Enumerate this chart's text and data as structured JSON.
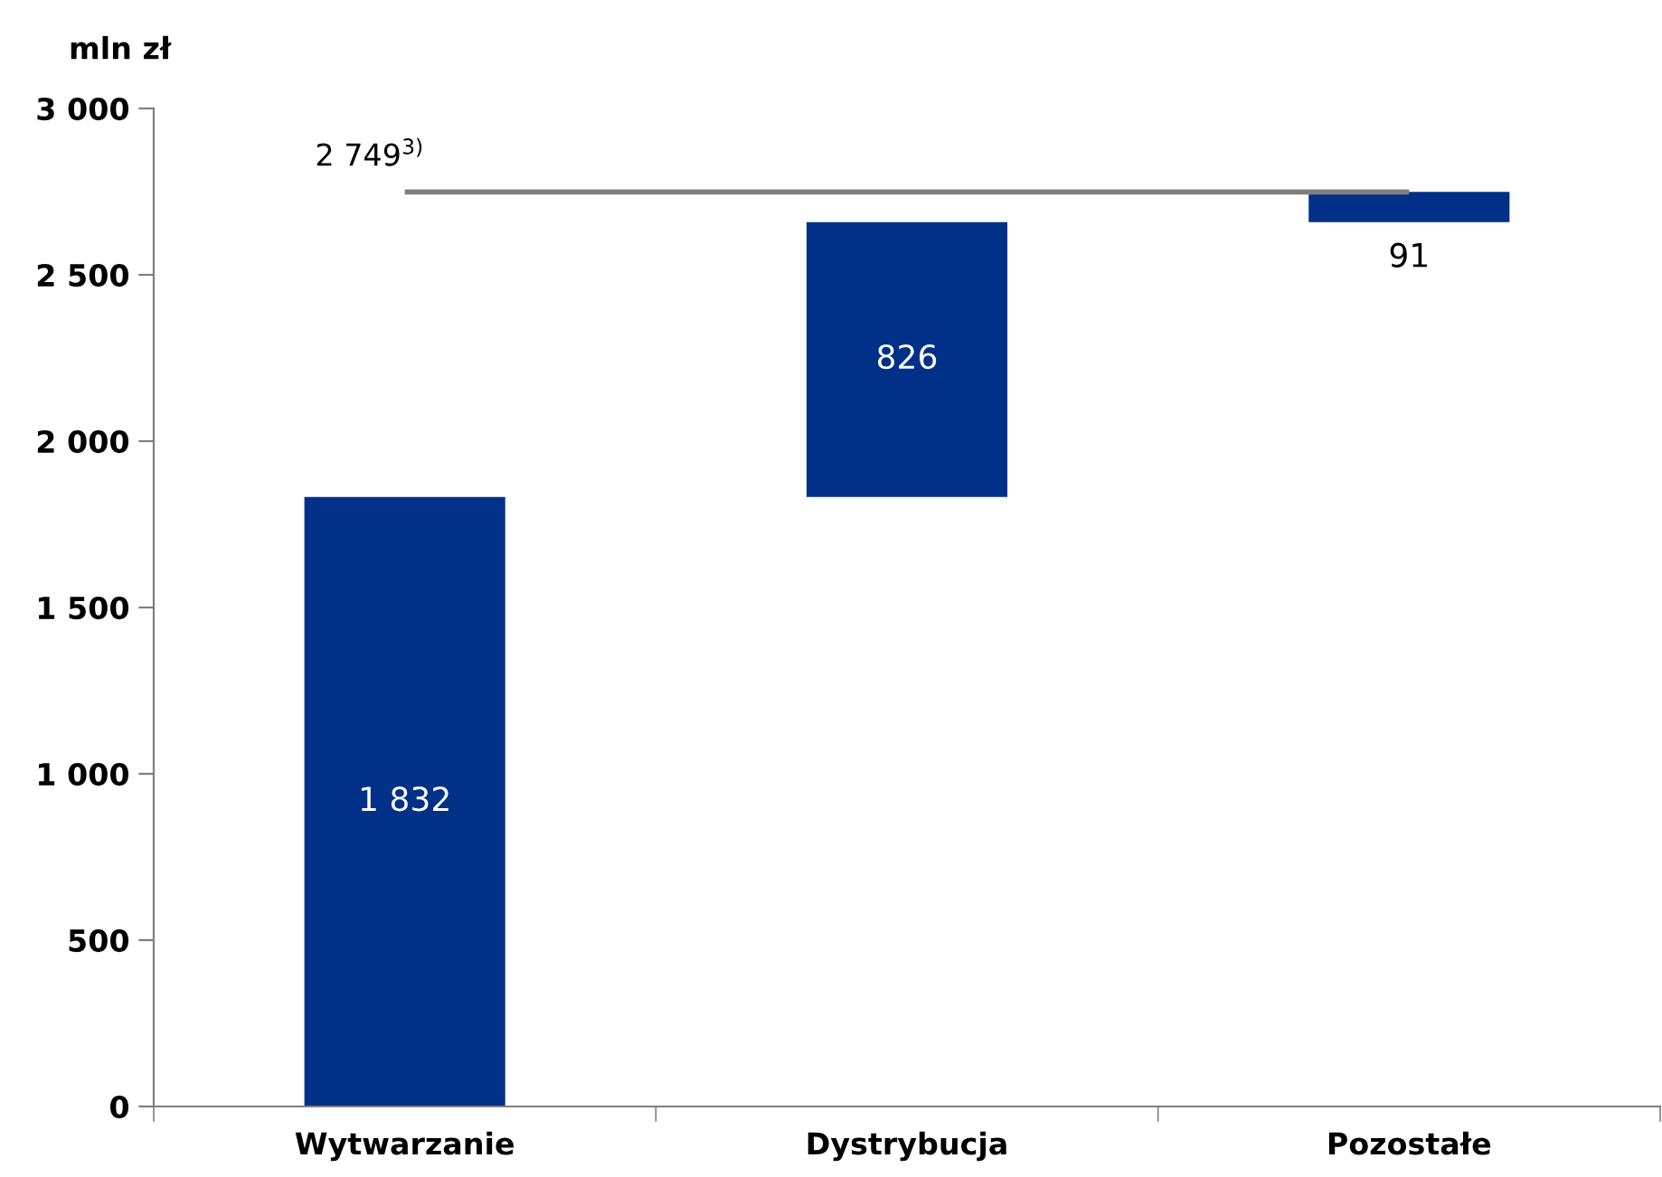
{
  "chart_data": {
    "type": "bar",
    "ylabel": "mln zł",
    "categories": [
      "Wytwarzanie",
      "Dystrybucja",
      "Pozostałe"
    ],
    "values": [
      1832,
      826,
      91
    ],
    "base": [
      0,
      1832,
      2658
    ],
    "color": "#003087",
    "value_labels": [
      "1 832",
      "826",
      "91"
    ],
    "ylim": [
      0,
      3000
    ],
    "yticks": [
      {
        "value": 0,
        "label": "0"
      },
      {
        "value": 500,
        "label": "500"
      },
      {
        "value": 1000,
        "label": "1 000"
      },
      {
        "value": 1500,
        "label": "1 500"
      },
      {
        "value": 2000,
        "label": "2 000"
      },
      {
        "value": 2500,
        "label": "2 500"
      },
      {
        "value": 3000,
        "label": "3 000"
      }
    ],
    "ref_lines": [
      {
        "axis": "y",
        "value": 2749,
        "label": "2 749$^{3)}$",
        "color": "#7f7f7f"
      }
    ],
    "grid": false,
    "legend": false
  }
}
